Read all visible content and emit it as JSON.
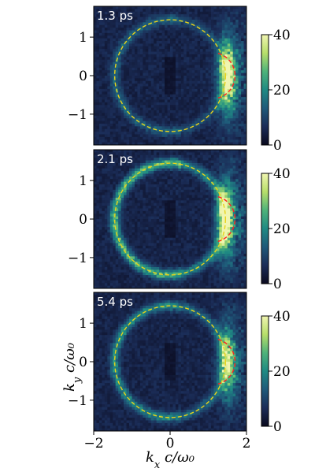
{
  "chart_data": [
    {
      "type": "heatmap",
      "annotation": "1.3 ps",
      "xlim": [
        -2,
        2
      ],
      "ylim": [
        -1.8,
        1.8
      ],
      "colorbar": {
        "min": 0,
        "max": 40,
        "ticks": [
          "0",
          "20",
          "40"
        ]
      },
      "yticks": [
        {
          "value": 1,
          "label": "1"
        },
        {
          "value": 0,
          "label": "0"
        },
        {
          "value": -1,
          "label": "−1"
        }
      ],
      "overlays": {
        "yellow_circle": {
          "cx": 0.0,
          "cy": 0.0,
          "r": 1.45
        },
        "red_arc": {
          "cx": 1.1,
          "cy": 0.0,
          "r": 0.6
        }
      },
      "intensity": {
        "ring_max": 12,
        "right_band_max": 40,
        "band_center_kx": 1.5
      }
    },
    {
      "type": "heatmap",
      "annotation": "2.1 ps",
      "xlim": [
        -2,
        2
      ],
      "ylim": [
        -1.8,
        1.8
      ],
      "colorbar": {
        "min": 0,
        "max": 40,
        "ticks": [
          "0",
          "20",
          "40"
        ]
      },
      "yticks": [
        {
          "value": 1,
          "label": "1"
        },
        {
          "value": 0,
          "label": "0"
        },
        {
          "value": -1,
          "label": "−1"
        }
      ],
      "overlays": {
        "yellow_circle": {
          "cx": 0.0,
          "cy": 0.0,
          "r": 1.45
        },
        "red_arc": {
          "cx": 1.1,
          "cy": 0.0,
          "r": 0.6
        }
      },
      "intensity": {
        "ring_max": 26,
        "right_band_max": 40,
        "band_center_kx": 1.45
      }
    },
    {
      "type": "heatmap",
      "annotation": "5.4 ps",
      "xlim": [
        -2,
        2
      ],
      "ylim": [
        -1.8,
        1.8
      ],
      "colorbar": {
        "min": 0,
        "max": 40,
        "ticks": [
          "0",
          "20",
          "40"
        ]
      },
      "yticks": [
        {
          "value": 1,
          "label": "1"
        },
        {
          "value": 0,
          "label": "0"
        },
        {
          "value": -1,
          "label": "−1"
        }
      ],
      "overlays": {
        "yellow_circle": {
          "cx": 0.0,
          "cy": 0.0,
          "r": 1.45
        },
        "red_arc": {
          "cx": 1.1,
          "cy": 0.0,
          "r": 0.6
        }
      },
      "intensity": {
        "ring_max": 18,
        "right_band_max": 30,
        "band_center_kx": 1.5
      }
    }
  ],
  "xticks": [
    {
      "value": -2,
      "label": "−2"
    },
    {
      "value": 0,
      "label": "0"
    },
    {
      "value": 2,
      "label": "2"
    }
  ],
  "xlabel": "k_x c/ω₀",
  "ylabel": "k_y c/ω₀",
  "colors": {
    "colormap": [
      "#0a0a1e",
      "#1b2d58",
      "#1f5a7a",
      "#1f8a83",
      "#4fb37a",
      "#b7de6a",
      "#f0f5b0"
    ],
    "circle": "#e8d21a",
    "arc": "#ff2020"
  }
}
